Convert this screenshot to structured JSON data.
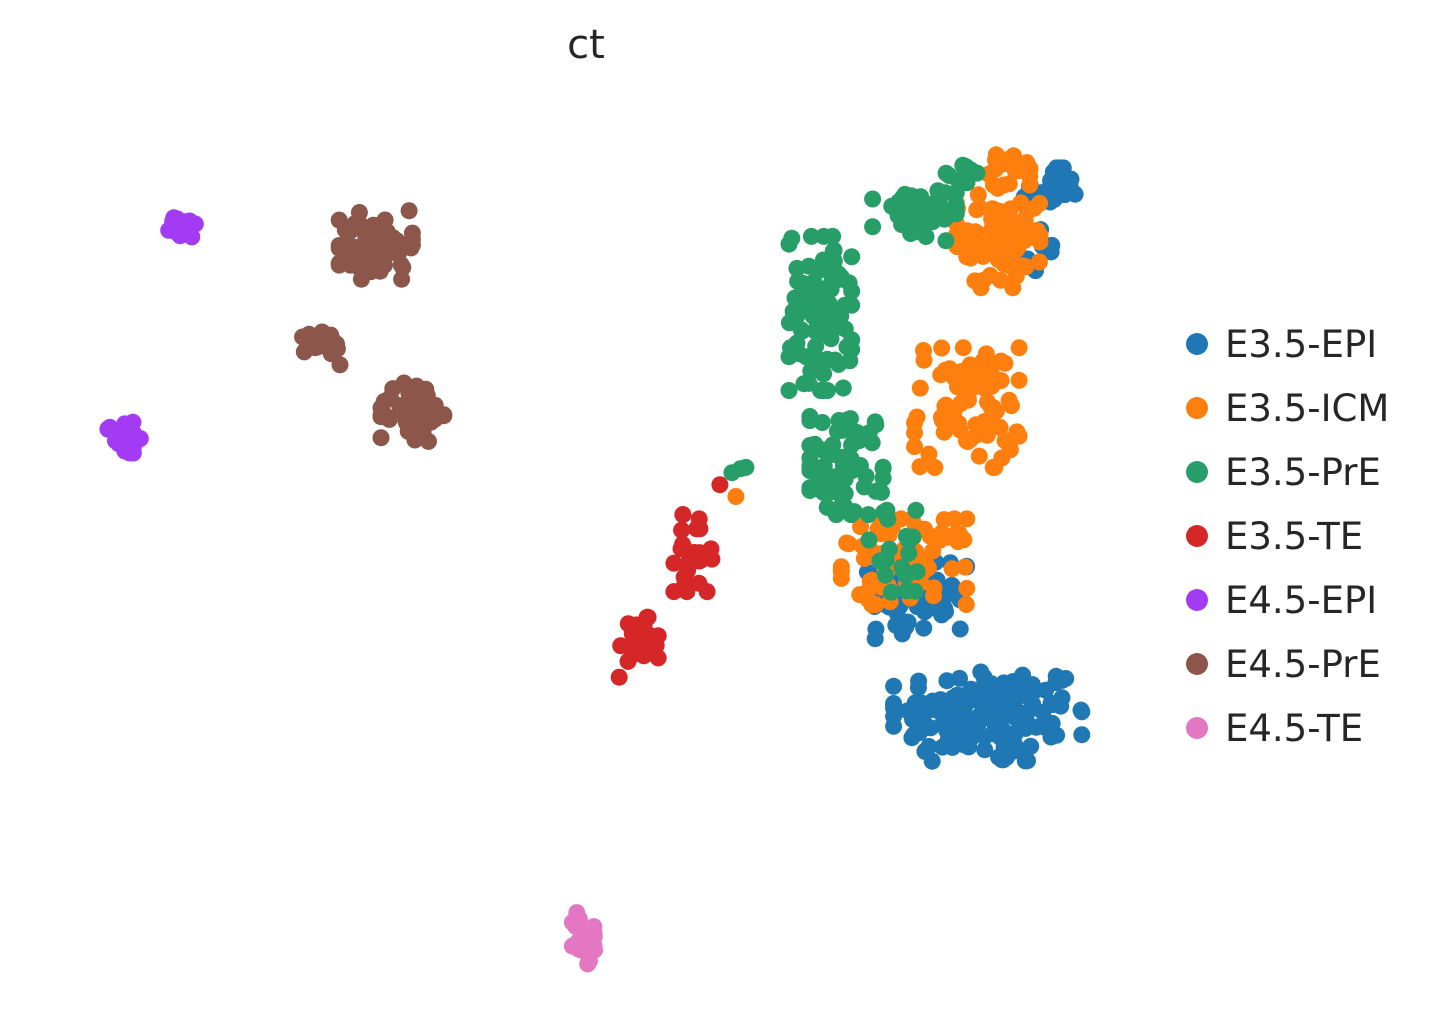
{
  "chart_data": {
    "type": "scatter",
    "title": "ct",
    "xlabel": "",
    "ylabel": "",
    "xlim": [
      0,
      100
    ],
    "ylim": [
      0,
      100
    ],
    "grid": false,
    "axes_visible": false,
    "legend_position": "right",
    "series": [
      {
        "name": "E3.5-EPI",
        "color": "#1f77b4",
        "clusters": [
          {
            "center": [
              88.5,
              29.0
            ],
            "spread": [
              9.0,
              5.5
            ],
            "n": 150
          },
          {
            "center": [
              82.0,
              43.0
            ],
            "spread": [
              5.0,
              5.0
            ],
            "n": 55
          },
          {
            "center": [
              94.5,
              90.5
            ],
            "spread": [
              2.5,
              2.5
            ],
            "n": 30
          },
          {
            "center": [
              93.5,
              83.5
            ],
            "spread": [
              1.2,
              2.5
            ],
            "n": 6
          }
        ]
      },
      {
        "name": "E3.5-ICM",
        "color": "#ff7f0e",
        "clusters": [
          {
            "center": [
              89.5,
              85.0
            ],
            "spread": [
              4.0,
              6.0
            ],
            "n": 80
          },
          {
            "center": [
              86.5,
              65.0
            ],
            "spread": [
              5.0,
              7.0
            ],
            "n": 80
          },
          {
            "center": [
              80.5,
              47.0
            ],
            "spread": [
              6.0,
              5.0
            ],
            "n": 90
          },
          {
            "center": [
              91.0,
              93.0
            ],
            "spread": [
              3.0,
              2.0
            ],
            "n": 15
          },
          {
            "center": [
              64.5,
              54.5
            ],
            "spread": [
              0.3,
              0.3
            ],
            "n": 1
          }
        ]
      },
      {
        "name": "E3.5-PrE",
        "color": "#279e68",
        "clusters": [
          {
            "center": [
              72.5,
              76.0
            ],
            "spread": [
              3.0,
              9.0
            ],
            "n": 90
          },
          {
            "center": [
              75.0,
              58.5
            ],
            "spread": [
              3.5,
              6.0
            ],
            "n": 70
          },
          {
            "center": [
              81.5,
              87.5
            ],
            "spread": [
              4.0,
              3.0
            ],
            "n": 45
          },
          {
            "center": [
              86.0,
              92.0
            ],
            "spread": [
              2.5,
              1.5
            ],
            "n": 10
          },
          {
            "center": [
              80.0,
              48.0
            ],
            "spread": [
              4.0,
              5.0
            ],
            "n": 20
          },
          {
            "center": [
              65.5,
              58.0
            ],
            "spread": [
              1.5,
              0.6
            ],
            "n": 3
          },
          {
            "center": [
              74.0,
              80.5
            ],
            "spread": [
              0.5,
              0.5
            ],
            "n": 2
          }
        ]
      },
      {
        "name": "E3.5-TE",
        "color": "#d62728",
        "clusters": [
          {
            "center": [
              60.5,
              48.0
            ],
            "spread": [
              2.0,
              4.5
            ],
            "n": 30
          },
          {
            "center": [
              55.0,
              37.0
            ],
            "spread": [
              2.0,
              3.5
            ],
            "n": 25
          },
          {
            "center": [
              62.5,
              56.0
            ],
            "spread": [
              0.4,
              0.4
            ],
            "n": 1
          }
        ]
      },
      {
        "name": "E4.5-EPI",
        "color": "#a33bf5",
        "clusters": [
          {
            "center": [
              11.5,
              86.0
            ],
            "spread": [
              1.3,
              1.2
            ],
            "n": 25
          },
          {
            "center": [
              6.0,
              61.5
            ],
            "spread": [
              1.6,
              1.8
            ],
            "n": 40
          }
        ]
      },
      {
        "name": "E4.5-PrE",
        "color": "#8c564b",
        "clusters": [
          {
            "center": [
              30.0,
              84.0
            ],
            "spread": [
              3.5,
              4.0
            ],
            "n": 60
          },
          {
            "center": [
              33.5,
              64.5
            ],
            "spread": [
              3.0,
              3.5
            ],
            "n": 55
          },
          {
            "center": [
              25.0,
              72.0
            ],
            "spread": [
              2.0,
              2.0
            ],
            "n": 15
          }
        ]
      },
      {
        "name": "E4.5-TE",
        "color": "#e377c2",
        "clusters": [
          {
            "center": [
              50.0,
              3.0
            ],
            "spread": [
              1.2,
              3.0
            ],
            "n": 25
          }
        ]
      }
    ]
  }
}
